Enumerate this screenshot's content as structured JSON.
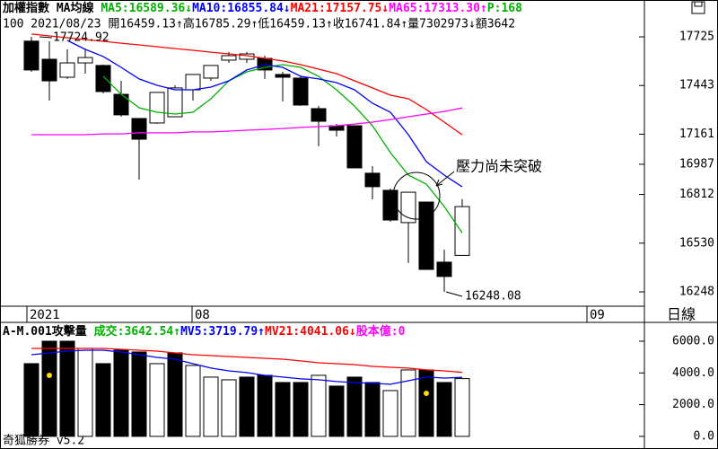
{
  "header": {
    "line1": [
      {
        "text": "加權指數 MA均線 ",
        "color": "#000000"
      },
      {
        "text": "MA5:16589.36↓",
        "color": "#00b000"
      },
      {
        "text": "MA10:16855.84↓",
        "color": "#0000ff"
      },
      {
        "text": "MA21:17157.75↓",
        "color": "#ff0000"
      },
      {
        "text": "MA65:17313.30↑",
        "color": "#ff00ff"
      },
      {
        "text": "P:168",
        "color": "#00b000"
      }
    ],
    "line2": "100 2021/08/23 開16459.13↑高16785.29↑低16459.13↑收16741.84↑量7302973↓額3642"
  },
  "period": "日線",
  "footer": "奇狐勝券 v5.2",
  "chart_data": [
    {
      "type": "candlestick",
      "up_color": "#ffffff",
      "down_color": "#000000",
      "xlim": [
        -1.75,
        34.15
      ],
      "xticks": [
        {
          "value": -0.1,
          "label": "2021"
        },
        {
          "value": 9.1,
          "label": "08"
        },
        {
          "value": 31.1,
          "label": "09"
        }
      ],
      "ylim": [
        16170,
        17751
      ],
      "yticks": [
        17725,
        17443,
        17161,
        16987,
        16812,
        16530,
        16248
      ],
      "open": [
        17700,
        17595,
        17491,
        17574,
        17559,
        17392,
        17252,
        17226,
        17262,
        17418,
        17486,
        17590,
        17595,
        17600,
        17507,
        17486,
        17309,
        17210,
        17210,
        16935,
        16836,
        16649,
        16768,
        16420,
        16459.13
      ],
      "high": [
        17724.92,
        17699,
        17652,
        17657,
        17564,
        17470,
        17252,
        17403,
        17444,
        17507,
        17559,
        17637,
        17637,
        17616,
        17522,
        17501,
        17325,
        17221,
        17210,
        16976,
        16846,
        16825,
        16768,
        16492,
        16785.29
      ],
      "low": [
        17522,
        17356,
        17481,
        17512,
        17397,
        17262,
        16898,
        17221,
        17262,
        17356,
        17470,
        17574,
        17574,
        17481,
        17351,
        17325,
        17091,
        17148,
        16966,
        16784,
        16654,
        16415,
        16378,
        16248.08,
        16459.13
      ],
      "close": [
        17533,
        17470,
        17574,
        17605,
        17408,
        17273,
        17132,
        17403,
        17429,
        17507,
        17559,
        17616,
        17626,
        17533,
        17491,
        17330,
        17236,
        17184,
        16966,
        16857,
        16664,
        16825,
        16378,
        16337,
        16741.84
      ],
      "series": [
        {
          "name": "MA5",
          "color": "#00b000",
          "values": [
            null,
            null,
            null,
            null,
            17496,
            17392,
            17314,
            17288,
            17278,
            17288,
            17366,
            17470,
            17522,
            17548,
            17564,
            17548,
            17496,
            17418,
            17324,
            17210,
            17054,
            16924,
            16872,
            16742,
            16589.36
          ]
        },
        {
          "name": "MA10",
          "color": "#0000ff",
          "values": [
            null,
            null,
            17704,
            17652,
            17611,
            17548,
            17481,
            17444,
            17418,
            17418,
            17434,
            17470,
            17533,
            17564,
            17548,
            17496,
            17481,
            17460,
            17418,
            17340,
            17288,
            17158,
            17002,
            16924,
            16855.84
          ]
        },
        {
          "name": "MA21",
          "color": "#ff0000",
          "values": [
            17741,
            17730,
            17720,
            17709,
            17699,
            17688,
            17678,
            17668,
            17657,
            17647,
            17636,
            17626,
            17616,
            17600,
            17585,
            17564,
            17538,
            17512,
            17470,
            17429,
            17387,
            17366,
            17304,
            17231,
            17157.75
          ]
        },
        {
          "name": "MA65",
          "color": "#ff00ff",
          "values": [
            17158,
            17158,
            17158,
            17158,
            17163,
            17163,
            17169,
            17169,
            17169,
            17174,
            17174,
            17179,
            17184,
            17189,
            17194,
            17200,
            17205,
            17210,
            17220,
            17231,
            17246,
            17262,
            17278,
            17293,
            17313.3
          ]
        }
      ],
      "annotations": [
        {
          "text": "17724.92"
        },
        {
          "text": "16248.08"
        },
        {
          "text": "壓力尚未突破"
        }
      ]
    },
    {
      "type": "bar",
      "title": [
        {
          "text": "A-M.001攻擊量 ",
          "color": "#000000"
        },
        {
          "text": "成交:3642.54↑",
          "color": "#00b000"
        },
        {
          "text": "MV5:3719.79↑",
          "color": "#0000ff"
        },
        {
          "text": "MV21:4041.06↓",
          "color": "#ff0000"
        },
        {
          "text": "股本億:0",
          "color": "#ff00ff"
        }
      ],
      "xlim": [
        -1.75,
        34.15
      ],
      "ylim": [
        -230,
        6960
      ],
      "yticks": [
        {
          "value": 6000,
          "label": "6000.0"
        },
        {
          "value": 4000,
          "label": "4000.0"
        },
        {
          "value": 2000,
          "label": "2000.0"
        },
        {
          "value": 0,
          "label": "0.0"
        }
      ],
      "values": [
        4585,
        6000,
        6000,
        5547,
        4585,
        5434,
        5321,
        4585,
        5264,
        4472,
        3736,
        3566,
        3736,
        3849,
        3396,
        3396,
        3849,
        3170,
        3736,
        3396,
        2887,
        4189,
        4189,
        3396,
        3642.54
      ],
      "colors": [
        "#000000",
        "#000000",
        "#000000",
        "#ffffff",
        "#000000",
        "#000000",
        "#000000",
        "#ffffff",
        "#000000",
        "#ffffff",
        "#ffffff",
        "#ffffff",
        "#000000",
        "#000000",
        "#000000",
        "#000000",
        "#ffffff",
        "#000000",
        "#000000",
        "#000000",
        "#ffffff",
        "#ffffff",
        "#000000",
        "#000000",
        "#ffffff"
      ],
      "signal_color": "#ffdd00",
      "signal_indices": [
        1,
        22
      ],
      "series": [
        {
          "name": "MV5",
          "color": "#0000ff",
          "values": [
            5151,
            5264,
            5377,
            5434,
            5434,
            5321,
            5151,
            4981,
            4868,
            4585,
            4302,
            4132,
            4019,
            3849,
            3736,
            3623,
            3566,
            3453,
            3396,
            3340,
            3283,
            3509,
            3736,
            3679,
            3719.79
          ]
        },
        {
          "name": "MV21",
          "color": "#ff0000",
          "values": [
            5547,
            5547,
            5547,
            5547,
            5547,
            5490,
            5434,
            5377,
            5264,
            5151,
            5094,
            5037,
            4981,
            4924,
            4868,
            4755,
            4641,
            4585,
            4528,
            4415,
            4358,
            4302,
            4189,
            4132,
            4041.06
          ]
        }
      ]
    }
  ]
}
